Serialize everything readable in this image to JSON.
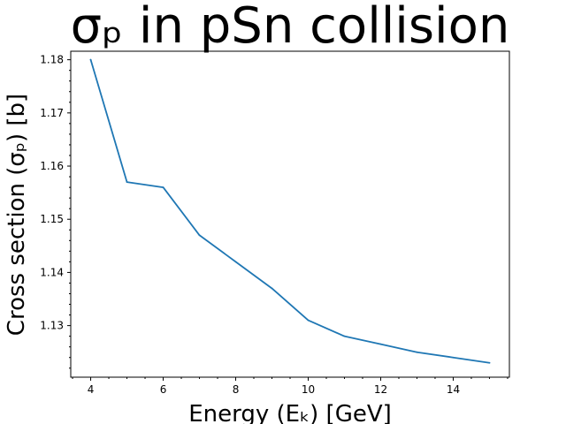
{
  "chart_data": {
    "type": "line",
    "title": "σₚ in pSn collision",
    "xlabel": "Energy (Eₖ) [GeV]",
    "ylabel": "Cross section (σₚ) [b]",
    "xlim": [
      3.45,
      15.55
    ],
    "ylim": [
      1.1203,
      1.1816
    ],
    "xticks": [
      4,
      6,
      8,
      10,
      12,
      14
    ],
    "xtick_labels": [
      "4",
      "6",
      "8",
      "10",
      "12",
      "14"
    ],
    "yticks": [
      1.13,
      1.14,
      1.15,
      1.16,
      1.17,
      1.18
    ],
    "ytick_labels": [
      "1.13",
      "1.14",
      "1.15",
      "1.16",
      "1.17",
      "1.18"
    ],
    "grid": false,
    "series": [
      {
        "color": "#1f77b4",
        "x": [
          4,
          5,
          6,
          7,
          8,
          9,
          10,
          11,
          12,
          13,
          14,
          15
        ],
        "y": [
          1.18,
          1.157,
          1.156,
          1.147,
          1.142,
          1.137,
          1.131,
          1.128,
          1.1265,
          1.125,
          1.124,
          1.123
        ]
      }
    ]
  }
}
